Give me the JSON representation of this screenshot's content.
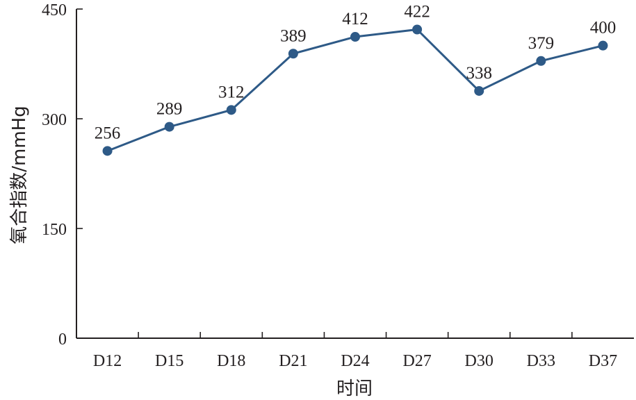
{
  "chart_data": {
    "type": "line",
    "title": "",
    "xlabel": "时间",
    "ylabel": "氧合指数/mmHg",
    "categories": [
      "D12",
      "D15",
      "D18",
      "D21",
      "D24",
      "D27",
      "D30",
      "D33",
      "D37"
    ],
    "series": [
      {
        "values": [
          256,
          289,
          312,
          389,
          412,
          422,
          338,
          379,
          400
        ],
        "color": "#2e5a87"
      }
    ],
    "ylim": [
      0,
      450
    ],
    "yticks": [
      0,
      150,
      300,
      450
    ],
    "grid": false,
    "data_labels": true
  }
}
